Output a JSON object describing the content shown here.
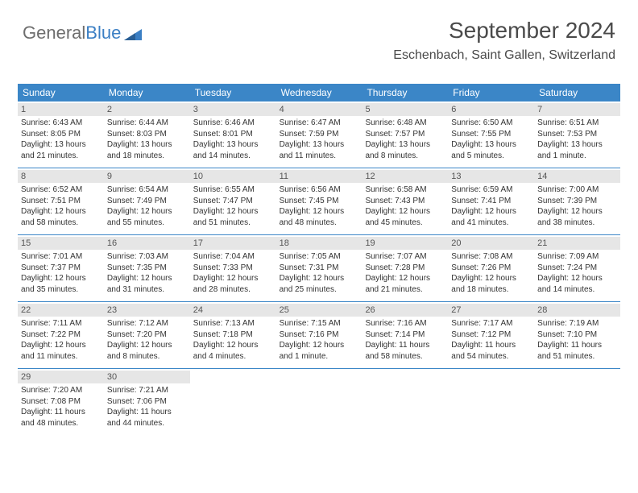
{
  "brand": {
    "part1": "General",
    "part2": "Blue"
  },
  "header": {
    "title": "September 2024",
    "subtitle": "Eschenbach, Saint Gallen, Switzerland"
  },
  "colors": {
    "header_bg": "#3b86c7",
    "header_text": "#ffffff",
    "daynum_bg": "#e6e6e6",
    "border": "#3b86c7",
    "text": "#333333",
    "logo_gray": "#6e6e6e",
    "logo_blue": "#3b7fc4",
    "background": "#ffffff"
  },
  "typography": {
    "title_fontsize": 28,
    "subtitle_fontsize": 16,
    "dayhead_fontsize": 12,
    "daynum_fontsize": 11,
    "body_fontsize": 10
  },
  "day_names": [
    "Sunday",
    "Monday",
    "Tuesday",
    "Wednesday",
    "Thursday",
    "Friday",
    "Saturday"
  ],
  "weeks": [
    [
      {
        "n": "1",
        "sr": "Sunrise: 6:43 AM",
        "ss": "Sunset: 8:05 PM",
        "d1": "Daylight: 13 hours",
        "d2": "and 21 minutes."
      },
      {
        "n": "2",
        "sr": "Sunrise: 6:44 AM",
        "ss": "Sunset: 8:03 PM",
        "d1": "Daylight: 13 hours",
        "d2": "and 18 minutes."
      },
      {
        "n": "3",
        "sr": "Sunrise: 6:46 AM",
        "ss": "Sunset: 8:01 PM",
        "d1": "Daylight: 13 hours",
        "d2": "and 14 minutes."
      },
      {
        "n": "4",
        "sr": "Sunrise: 6:47 AM",
        "ss": "Sunset: 7:59 PM",
        "d1": "Daylight: 13 hours",
        "d2": "and 11 minutes."
      },
      {
        "n": "5",
        "sr": "Sunrise: 6:48 AM",
        "ss": "Sunset: 7:57 PM",
        "d1": "Daylight: 13 hours",
        "d2": "and 8 minutes."
      },
      {
        "n": "6",
        "sr": "Sunrise: 6:50 AM",
        "ss": "Sunset: 7:55 PM",
        "d1": "Daylight: 13 hours",
        "d2": "and 5 minutes."
      },
      {
        "n": "7",
        "sr": "Sunrise: 6:51 AM",
        "ss": "Sunset: 7:53 PM",
        "d1": "Daylight: 13 hours",
        "d2": "and 1 minute."
      }
    ],
    [
      {
        "n": "8",
        "sr": "Sunrise: 6:52 AM",
        "ss": "Sunset: 7:51 PM",
        "d1": "Daylight: 12 hours",
        "d2": "and 58 minutes."
      },
      {
        "n": "9",
        "sr": "Sunrise: 6:54 AM",
        "ss": "Sunset: 7:49 PM",
        "d1": "Daylight: 12 hours",
        "d2": "and 55 minutes."
      },
      {
        "n": "10",
        "sr": "Sunrise: 6:55 AM",
        "ss": "Sunset: 7:47 PM",
        "d1": "Daylight: 12 hours",
        "d2": "and 51 minutes."
      },
      {
        "n": "11",
        "sr": "Sunrise: 6:56 AM",
        "ss": "Sunset: 7:45 PM",
        "d1": "Daylight: 12 hours",
        "d2": "and 48 minutes."
      },
      {
        "n": "12",
        "sr": "Sunrise: 6:58 AM",
        "ss": "Sunset: 7:43 PM",
        "d1": "Daylight: 12 hours",
        "d2": "and 45 minutes."
      },
      {
        "n": "13",
        "sr": "Sunrise: 6:59 AM",
        "ss": "Sunset: 7:41 PM",
        "d1": "Daylight: 12 hours",
        "d2": "and 41 minutes."
      },
      {
        "n": "14",
        "sr": "Sunrise: 7:00 AM",
        "ss": "Sunset: 7:39 PM",
        "d1": "Daylight: 12 hours",
        "d2": "and 38 minutes."
      }
    ],
    [
      {
        "n": "15",
        "sr": "Sunrise: 7:01 AM",
        "ss": "Sunset: 7:37 PM",
        "d1": "Daylight: 12 hours",
        "d2": "and 35 minutes."
      },
      {
        "n": "16",
        "sr": "Sunrise: 7:03 AM",
        "ss": "Sunset: 7:35 PM",
        "d1": "Daylight: 12 hours",
        "d2": "and 31 minutes."
      },
      {
        "n": "17",
        "sr": "Sunrise: 7:04 AM",
        "ss": "Sunset: 7:33 PM",
        "d1": "Daylight: 12 hours",
        "d2": "and 28 minutes."
      },
      {
        "n": "18",
        "sr": "Sunrise: 7:05 AM",
        "ss": "Sunset: 7:31 PM",
        "d1": "Daylight: 12 hours",
        "d2": "and 25 minutes."
      },
      {
        "n": "19",
        "sr": "Sunrise: 7:07 AM",
        "ss": "Sunset: 7:28 PM",
        "d1": "Daylight: 12 hours",
        "d2": "and 21 minutes."
      },
      {
        "n": "20",
        "sr": "Sunrise: 7:08 AM",
        "ss": "Sunset: 7:26 PM",
        "d1": "Daylight: 12 hours",
        "d2": "and 18 minutes."
      },
      {
        "n": "21",
        "sr": "Sunrise: 7:09 AM",
        "ss": "Sunset: 7:24 PM",
        "d1": "Daylight: 12 hours",
        "d2": "and 14 minutes."
      }
    ],
    [
      {
        "n": "22",
        "sr": "Sunrise: 7:11 AM",
        "ss": "Sunset: 7:22 PM",
        "d1": "Daylight: 12 hours",
        "d2": "and 11 minutes."
      },
      {
        "n": "23",
        "sr": "Sunrise: 7:12 AM",
        "ss": "Sunset: 7:20 PM",
        "d1": "Daylight: 12 hours",
        "d2": "and 8 minutes."
      },
      {
        "n": "24",
        "sr": "Sunrise: 7:13 AM",
        "ss": "Sunset: 7:18 PM",
        "d1": "Daylight: 12 hours",
        "d2": "and 4 minutes."
      },
      {
        "n": "25",
        "sr": "Sunrise: 7:15 AM",
        "ss": "Sunset: 7:16 PM",
        "d1": "Daylight: 12 hours",
        "d2": "and 1 minute."
      },
      {
        "n": "26",
        "sr": "Sunrise: 7:16 AM",
        "ss": "Sunset: 7:14 PM",
        "d1": "Daylight: 11 hours",
        "d2": "and 58 minutes."
      },
      {
        "n": "27",
        "sr": "Sunrise: 7:17 AM",
        "ss": "Sunset: 7:12 PM",
        "d1": "Daylight: 11 hours",
        "d2": "and 54 minutes."
      },
      {
        "n": "28",
        "sr": "Sunrise: 7:19 AM",
        "ss": "Sunset: 7:10 PM",
        "d1": "Daylight: 11 hours",
        "d2": "and 51 minutes."
      }
    ],
    [
      {
        "n": "29",
        "sr": "Sunrise: 7:20 AM",
        "ss": "Sunset: 7:08 PM",
        "d1": "Daylight: 11 hours",
        "d2": "and 48 minutes."
      },
      {
        "n": "30",
        "sr": "Sunrise: 7:21 AM",
        "ss": "Sunset: 7:06 PM",
        "d1": "Daylight: 11 hours",
        "d2": "and 44 minutes."
      },
      null,
      null,
      null,
      null,
      null
    ]
  ]
}
